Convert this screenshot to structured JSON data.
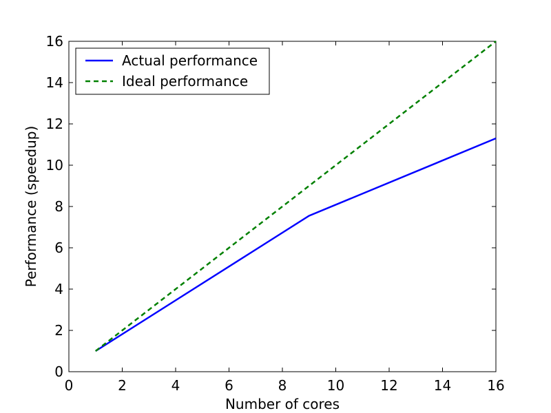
{
  "chart_data": {
    "type": "line",
    "title": "",
    "xlabel": "Number of cores",
    "ylabel": "Performance (speedup)",
    "xlim": [
      0,
      16
    ],
    "ylim": [
      0,
      16
    ],
    "xticks": [
      0,
      2,
      4,
      6,
      8,
      10,
      12,
      14,
      16
    ],
    "yticks": [
      0,
      2,
      4,
      6,
      8,
      10,
      12,
      14,
      16
    ],
    "grid": false,
    "legend_position": "top-left",
    "series": [
      {
        "name": "Actual performance",
        "color": "#0000ff",
        "style": "solid",
        "x": [
          1,
          9,
          16
        ],
        "y": [
          1,
          7.55,
          11.3
        ]
      },
      {
        "name": "Ideal performance",
        "color": "#008000",
        "style": "dashed",
        "x": [
          1,
          16
        ],
        "y": [
          1,
          16
        ]
      }
    ]
  }
}
